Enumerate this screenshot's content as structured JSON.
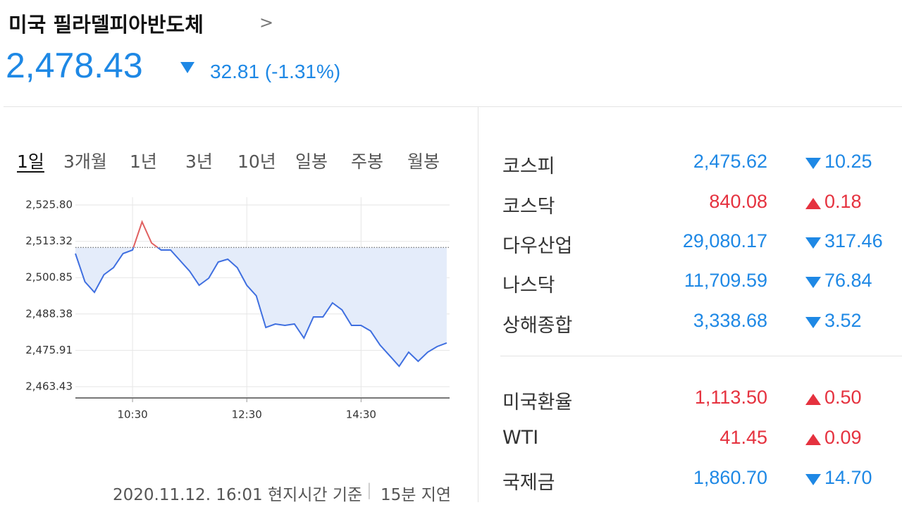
{
  "header": {
    "title": "미국 필라델피아반도체",
    "price": "2,478.43",
    "change": "32.81",
    "change_percent": "(-1.31%)",
    "direction": "down"
  },
  "periods": {
    "items": [
      "1일",
      "3개월",
      "1년",
      "3년",
      "10년",
      "일봉",
      "주봉",
      "월봉"
    ],
    "selected": 0
  },
  "chart_data": {
    "type": "line",
    "x": [
      570,
      580,
      590,
      600,
      610,
      620,
      630,
      640,
      650,
      660,
      670,
      680,
      690,
      700,
      710,
      720,
      730,
      740,
      750,
      760,
      770,
      780,
      790,
      800,
      810,
      820,
      830,
      840,
      850,
      860,
      870,
      880,
      890,
      900,
      910,
      920,
      930,
      940,
      950,
      960
    ],
    "series": [
      {
        "values": [
          2509.12,
          2499.45,
          2495.83,
          2501.87,
          2504.29,
          2509.12,
          2510.33,
          2520.0,
          2512.75,
          2510.33,
          2510.33,
          2506.71,
          2503.08,
          2498.25,
          2500.66,
          2506.22,
          2507.19,
          2504.29,
          2498.25,
          2494.62,
          2483.74,
          2484.95,
          2484.47,
          2484.95,
          2480.12,
          2487.37,
          2487.37,
          2492.2,
          2489.79,
          2484.47,
          2484.47,
          2482.54,
          2477.7,
          2474.08,
          2470.45,
          2475.28,
          2472.14,
          2475.28,
          2477.22,
          2478.43
        ],
        "color": "#3f6fe0",
        "above_color": "#e06060",
        "fill": "#e4ecfa"
      }
    ],
    "reference": 2511.24,
    "xlim": [
      570,
      963
    ],
    "xticks": [
      {
        "value": 630,
        "label": "10:30"
      },
      {
        "value": 750,
        "label": "12:30"
      },
      {
        "value": 870,
        "label": "14:30"
      }
    ],
    "ylim": [
      2459.56,
      2528.46
    ],
    "yticks": [
      {
        "value": 2463.43,
        "label": "2,463.43"
      },
      {
        "value": 2475.91,
        "label": "2,475.91"
      },
      {
        "value": 2488.38,
        "label": "2,488.38"
      },
      {
        "value": 2500.85,
        "label": "2,500.85"
      },
      {
        "value": 2513.32,
        "label": "2,513.32"
      },
      {
        "value": 2525.8,
        "label": "2,525.80"
      }
    ],
    "grid": true
  },
  "footer": {
    "timestamp": "2020.11.12. 16:01 현지시간 기준",
    "delay": "15분 지연"
  },
  "indices": [
    [
      {
        "name": "코스피",
        "value": "2,475.62",
        "change": "10.25",
        "direction": "down"
      },
      {
        "name": "코스닥",
        "value": "840.08",
        "change": "0.18",
        "direction": "up"
      },
      {
        "name": "다우산업",
        "value": "29,080.17",
        "change": "317.46",
        "direction": "down"
      },
      {
        "name": "나스닥",
        "value": "11,709.59",
        "change": "76.84",
        "direction": "down"
      },
      {
        "name": "상해종합",
        "value": "3,338.68",
        "change": "3.52",
        "direction": "down"
      }
    ],
    [
      {
        "name": "미국환율",
        "value": "1,113.50",
        "change": "0.50",
        "direction": "up"
      },
      {
        "name": "WTI",
        "value": "41.45",
        "change": "0.09",
        "direction": "up"
      },
      {
        "name": "국제금",
        "value": "1,860.70",
        "change": "14.70",
        "direction": "down"
      }
    ]
  ]
}
